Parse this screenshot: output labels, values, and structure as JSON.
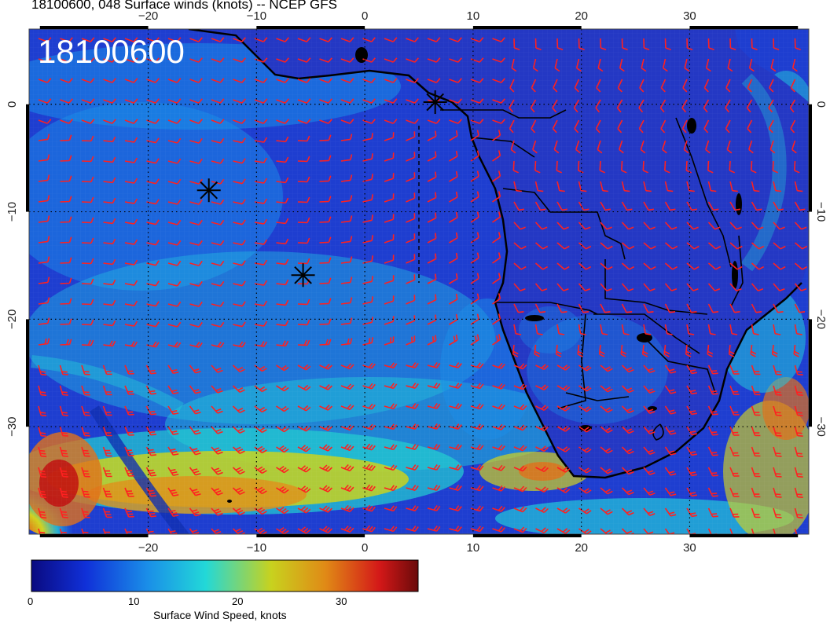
{
  "header": {
    "title": "18100600, 048 Surface winds (knots) -- NCEP GFS",
    "stamp": "18100600"
  },
  "map": {
    "lon_range": [
      -31,
      41
    ],
    "lat_range": [
      -40,
      7
    ],
    "lon_ticks": [
      "−20",
      "−10",
      "0",
      "10",
      "20",
      "30"
    ],
    "lat_ticks": [
      "0",
      "−10",
      "−20",
      "−30"
    ],
    "grid": "dotted",
    "markers": [
      {
        "name": "asterisk-marker",
        "lon": 6.5,
        "lat": 0.2
      },
      {
        "name": "asterisk-marker",
        "lon": -14.4,
        "lat": -8.0
      },
      {
        "name": "asterisk-marker",
        "lon": -5.7,
        "lat": -15.9
      }
    ],
    "colors": {
      "ocean_low": "#1636c8",
      "ocean_mid": "#1a9ce8",
      "jet_yellow": "#d2d21e",
      "jet_orange": "#e0701a",
      "jet_red": "#c01010",
      "barb": "#ff2020",
      "coast": "#000000"
    }
  },
  "colorbar": {
    "labels": [
      "0",
      "10",
      "20",
      "30"
    ],
    "title": "Surface Wind Speed, knots",
    "range": [
      0,
      37
    ],
    "stops": [
      "#0a0a80",
      "#1030d8",
      "#1a8ee8",
      "#22d8d8",
      "#c8d21e",
      "#e08a16",
      "#d41818",
      "#6a0a0a"
    ]
  }
}
